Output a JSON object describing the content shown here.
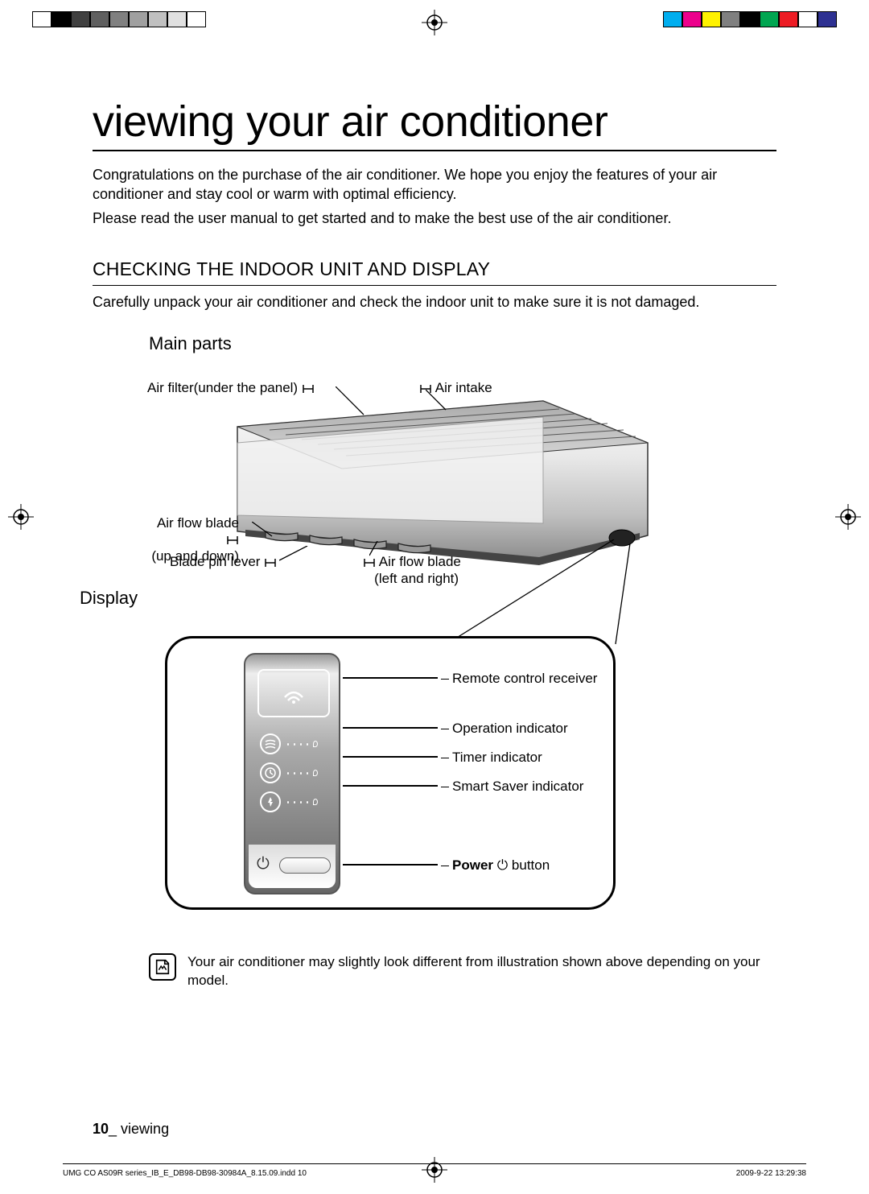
{
  "colorbars": {
    "left": [
      "#ffffff",
      "#000000",
      "#404040",
      "#606060",
      "#808080",
      "#a0a0a0",
      "#c0c0c0",
      "#e0e0e0",
      "#ffffff"
    ],
    "right": [
      "#00aeef",
      "#ec008c",
      "#fff200",
      "#808080",
      "#000000",
      "#00a651",
      "#ed1c24",
      "#ffffff",
      "#2e3192"
    ]
  },
  "title": "viewing your air conditioner",
  "intro": {
    "p1": "Congratulations on the purchase of the air conditioner. We hope you enjoy the features of your air conditioner and stay cool or warm with optimal efficiency.",
    "p2": "Please read the user manual to get started and to make the best use of the air conditioner."
  },
  "section_heading": "CHECKING THE INDOOR UNIT AND DISPLAY",
  "section_sub": "Carefully unpack your air conditioner and check the indoor unit to make sure it is not damaged.",
  "main_parts_heading": "Main parts",
  "callouts": {
    "air_filter": "Air filter(under the panel)",
    "air_intake": "Air intake",
    "air_flow_ud_1": "Air flow blade",
    "air_flow_ud_2": "(up and down)",
    "blade_pin": "Blade pin lever",
    "air_flow_lr_1": "Air flow blade",
    "air_flow_lr_2": "(left and right)"
  },
  "display_heading": "Display",
  "display_labels": {
    "remote_receiver": "Remote control receiver",
    "operation": "Operation indicator",
    "timer": "Timer indicator",
    "smart_saver": "Smart Saver indicator",
    "power_bold": "Power",
    "power_rest": " button"
  },
  "note": "Your air conditioner may slightly look different from illustration shown above depending on your model.",
  "footer": {
    "page": "10",
    "sep": "_ ",
    "section": "viewing"
  },
  "imprint": {
    "left": "UMG CO AS09R series_IB_E_DB98-DB98-30984A_8.15.09.indd   10",
    "right": "2009-9-22   13:29:38"
  }
}
